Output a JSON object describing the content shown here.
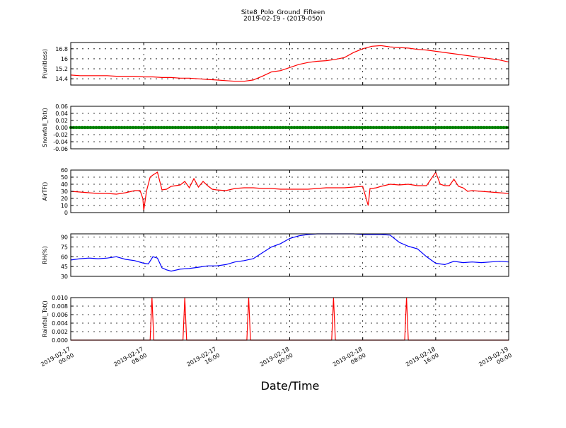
{
  "figure": {
    "title": "Site8_Polo_Ground_Fifteen",
    "subtitle": "2019-02-19 - (2019-050)",
    "xlabel": "Date/Time"
  },
  "x_axis": {
    "ticks": [
      {
        "t": 0,
        "lines": [
          "2019-02-17",
          "00:00"
        ]
      },
      {
        "t": 8,
        "lines": [
          "2019-02-17",
          "08:00"
        ]
      },
      {
        "t": 16,
        "lines": [
          "2019-02-17",
          "16:00"
        ]
      },
      {
        "t": 24,
        "lines": [
          "2019-02-18",
          "00:00"
        ]
      },
      {
        "t": 32,
        "lines": [
          "2019-02-18",
          "08:00"
        ]
      },
      {
        "t": 40,
        "lines": [
          "2019-02-18",
          "16:00"
        ]
      },
      {
        "t": 48,
        "lines": [
          "2019-02-19",
          "00:00"
        ]
      }
    ],
    "xlim": [
      0,
      48
    ]
  },
  "chart_data": [
    {
      "type": "line",
      "ylabel": "P(unitless)",
      "ylim": [
        13.9,
        17.3
      ],
      "yticks": [
        14.4,
        15.2,
        16.0,
        16.8
      ],
      "grid": true,
      "color": "#ff0000",
      "series": [
        {
          "x": [
            0,
            1,
            2,
            3,
            4,
            5,
            6,
            7,
            8,
            9,
            10,
            11,
            12,
            13,
            14,
            15,
            16,
            17,
            18,
            19,
            20,
            21,
            22,
            23,
            24,
            25,
            26,
            27,
            28,
            29,
            30,
            31,
            32,
            33,
            34,
            35,
            36,
            37,
            38,
            39,
            40,
            41,
            42,
            43,
            44,
            45,
            46,
            47,
            48
          ],
          "values": [
            14.7,
            14.65,
            14.65,
            14.65,
            14.65,
            14.6,
            14.6,
            14.6,
            14.55,
            14.55,
            14.5,
            14.5,
            14.45,
            14.45,
            14.4,
            14.35,
            14.3,
            14.25,
            14.2,
            14.2,
            14.3,
            14.6,
            14.95,
            15.05,
            15.3,
            15.55,
            15.7,
            15.8,
            15.85,
            15.95,
            16.1,
            16.5,
            16.8,
            17.0,
            17.05,
            16.95,
            16.9,
            16.85,
            16.75,
            16.7,
            16.6,
            16.5,
            16.4,
            16.3,
            16.2,
            16.1,
            16.0,
            15.9,
            15.75
          ]
        }
      ]
    },
    {
      "type": "line",
      "ylabel": "Snowfall_Tot()",
      "ylim": [
        -0.06,
        0.06
      ],
      "yticks": [
        -0.06,
        -0.04,
        -0.02,
        0.0,
        0.02,
        0.04,
        0.06
      ],
      "tick_format": "fixed2",
      "grid": true,
      "color": "#008000",
      "marker": "circle",
      "series": [
        {
          "x": [
            0,
            48
          ],
          "values": [
            0,
            0
          ]
        }
      ]
    },
    {
      "type": "line",
      "ylabel": "AirTF()",
      "ylim": [
        0,
        60
      ],
      "yticks": [
        0,
        10,
        20,
        30,
        40,
        50,
        60
      ],
      "grid": true,
      "color": "#ff0000",
      "series": [
        {
          "x": [
            0,
            1,
            2,
            3,
            4,
            5,
            6,
            7,
            7.6,
            7.9,
            8,
            8.3,
            8.7,
            9,
            9.5,
            10,
            10.5,
            11,
            11.5,
            12,
            12.5,
            13,
            13.5,
            14,
            14.5,
            15,
            15.5,
            16,
            17,
            18,
            19,
            20,
            21,
            22,
            23,
            24,
            25,
            26,
            27,
            28,
            29,
            30,
            31,
            32,
            32.6,
            32.8,
            33,
            33.5,
            34,
            35,
            36,
            37,
            38,
            39,
            40,
            40.5,
            41,
            41.5,
            42,
            42.5,
            43,
            43.5,
            44,
            45,
            46,
            47,
            48
          ],
          "values": [
            30,
            29,
            28,
            27,
            27,
            26,
            28,
            31,
            31,
            20,
            3,
            30,
            50,
            53,
            57,
            32,
            33,
            37,
            38,
            39,
            44,
            35,
            48,
            36,
            44,
            38,
            33,
            32,
            31,
            34,
            35,
            35,
            34,
            34,
            33,
            33,
            33,
            33,
            34,
            35,
            35,
            35,
            36,
            37,
            10,
            34,
            34,
            35,
            37,
            40,
            39,
            40,
            38,
            38,
            57,
            40,
            38,
            38,
            47,
            37,
            35,
            30,
            31,
            30,
            29,
            28,
            27
          ]
        }
      ]
    },
    {
      "type": "line",
      "ylabel": "RH(%)",
      "ylim": [
        30,
        95
      ],
      "yticks": [
        30,
        45,
        60,
        75,
        90
      ],
      "grid": true,
      "color": "#0000ff",
      "series": [
        {
          "x": [
            0,
            1,
            2,
            3,
            4,
            5,
            6,
            7,
            8,
            8.5,
            9,
            9.5,
            10,
            10.5,
            11,
            12,
            13,
            14,
            15,
            16,
            17,
            18,
            19,
            20,
            21,
            22,
            23,
            24,
            25,
            26,
            27,
            28,
            29,
            30,
            31,
            32,
            33,
            34,
            35,
            36,
            37,
            38,
            39,
            40,
            41,
            42,
            43,
            44,
            45,
            46,
            47,
            48
          ],
          "values": [
            55,
            57,
            58,
            57,
            58,
            60,
            56,
            54,
            50,
            49,
            60,
            58,
            43,
            40,
            38,
            41,
            42,
            44,
            46,
            46,
            48,
            52,
            54,
            57,
            66,
            75,
            80,
            88,
            92,
            94,
            95,
            95,
            95,
            95,
            95,
            94,
            94,
            94,
            93,
            82,
            76,
            72,
            60,
            50,
            48,
            53,
            51,
            52,
            51,
            52,
            53,
            52
          ]
        }
      ]
    },
    {
      "type": "line",
      "ylabel": "Rainfall_Tot()",
      "ylim": [
        0.0,
        0.01
      ],
      "yticks": [
        0.0,
        0.002,
        0.004,
        0.006,
        0.008,
        0.01
      ],
      "tick_format": "fixed3",
      "grid": true,
      "color": "#ff0000",
      "series": [
        {
          "x": [
            0,
            8.7,
            8.9,
            9.1,
            12.3,
            12.5,
            12.7,
            19.3,
            19.5,
            19.7,
            28.6,
            28.8,
            29.0,
            36.6,
            36.8,
            37.0,
            48
          ],
          "values": [
            0,
            0,
            0.01,
            0,
            0,
            0.01,
            0,
            0,
            0.01,
            0,
            0,
            0.01,
            0,
            0,
            0.01,
            0,
            0
          ]
        }
      ]
    }
  ]
}
